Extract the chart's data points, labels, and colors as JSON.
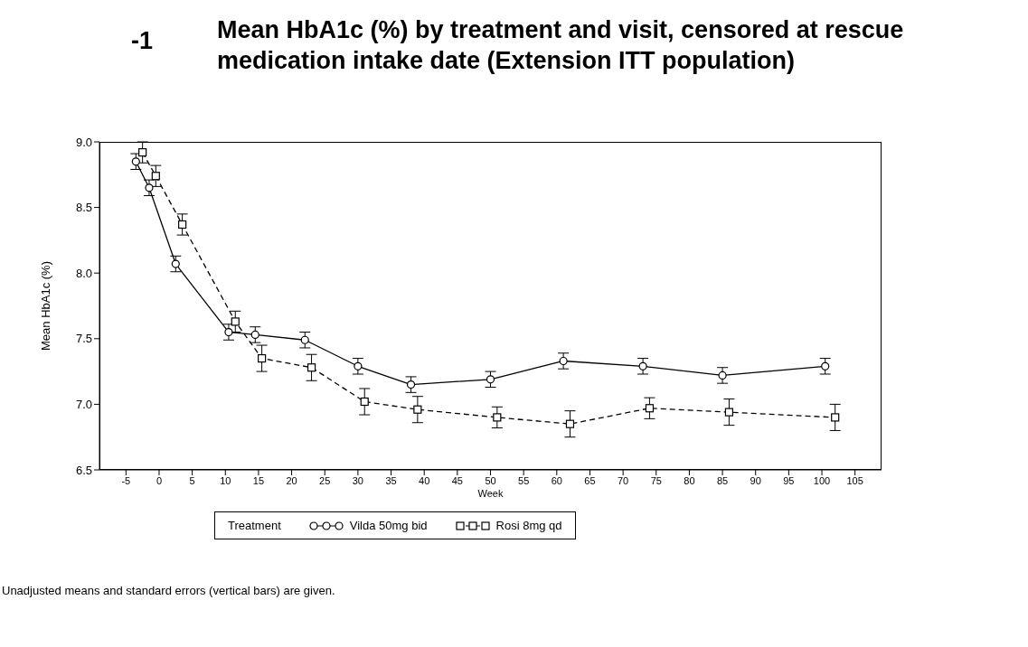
{
  "chart_data": {
    "type": "line",
    "title": "Mean HbA1c (%) by treatment and visit, censored at rescue medication intake date (Extension ITT population)",
    "xlabel": "Week",
    "ylabel": "Mean HbA1c (%)",
    "legend_title": "Treatment",
    "annotations": [
      "-1",
      "Unadjusted means and standard errors (vertical bars) are given."
    ],
    "series": [
      {
        "name": "Vilda 50mg bid",
        "color": "#000000",
        "marker": "circle",
        "line_style": "solid",
        "x": [
          -3.5,
          -1.5,
          2.5,
          10.5,
          14.5,
          22,
          30,
          38,
          50,
          61,
          73,
          85,
          100.5
        ],
        "values": [
          8.85,
          8.65,
          8.07,
          7.55,
          7.53,
          7.49,
          7.29,
          7.15,
          7.19,
          7.33,
          7.29,
          7.22,
          7.29
        ],
        "errors": [
          0.06,
          0.06,
          0.06,
          0.06,
          0.06,
          0.06,
          0.06,
          0.06,
          0.06,
          0.06,
          0.06,
          0.06,
          0.06
        ]
      },
      {
        "name": "Rosi 8mg qd",
        "color": "#000000",
        "marker": "square",
        "line_style": "dashed",
        "x": [
          -2.5,
          -0.5,
          3.5,
          11.5,
          15.5,
          23,
          31,
          39,
          51,
          62,
          74,
          86,
          102
        ],
        "values": [
          8.92,
          8.74,
          8.37,
          7.63,
          7.35,
          7.28,
          7.02,
          6.96,
          6.9,
          6.85,
          6.97,
          6.94,
          6.9
        ],
        "errors": [
          0.08,
          0.08,
          0.08,
          0.08,
          0.1,
          0.1,
          0.1,
          0.1,
          0.08,
          0.1,
          0.08,
          0.1,
          0.1
        ]
      }
    ],
    "xlim": [
      -9,
      109
    ],
    "xticks": [
      -5,
      0,
      5,
      10,
      15,
      20,
      25,
      30,
      35,
      40,
      45,
      50,
      55,
      60,
      65,
      70,
      75,
      80,
      85,
      90,
      95,
      100,
      105
    ],
    "ylim": [
      6.5,
      9.0
    ],
    "yticks": [
      {
        "value": 6.5,
        "label": "6.5"
      },
      {
        "value": 7,
        "label": "7.0"
      },
      {
        "value": 7.5,
        "label": "7.5"
      },
      {
        "value": 8,
        "label": "8.0"
      },
      {
        "value": 8.5,
        "label": "8.5"
      },
      {
        "value": 9,
        "label": "9.0"
      }
    ],
    "grid": false,
    "legend": "bottom"
  }
}
